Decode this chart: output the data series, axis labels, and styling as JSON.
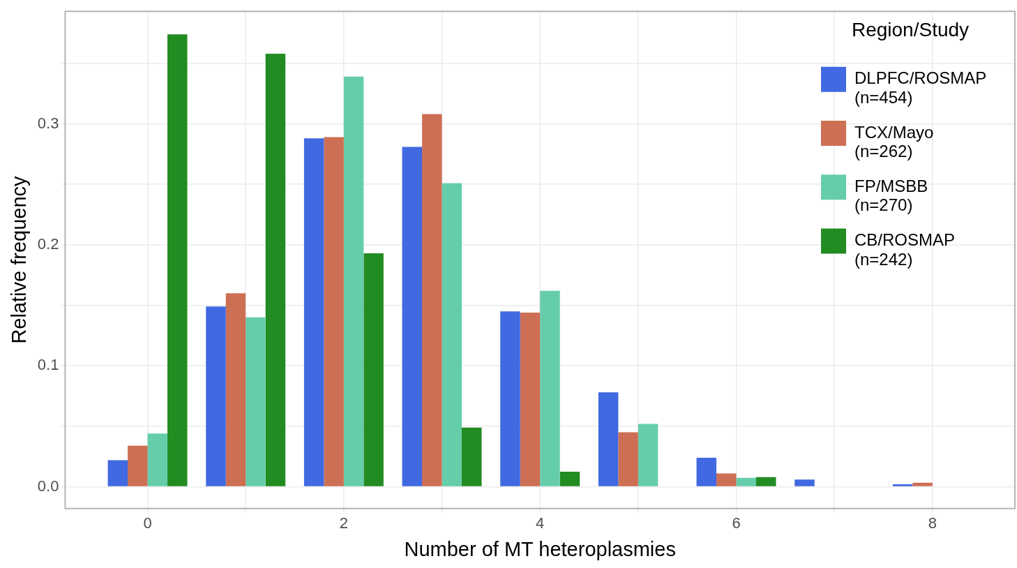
{
  "chart_data": {
    "type": "bar",
    "xlabel": "Number of MT heteroplasmies",
    "ylabel": "Relative frequency",
    "legend_title": "Region/Study",
    "x": [
      0,
      1,
      2,
      3,
      4,
      5,
      6,
      7,
      8
    ],
    "series": [
      {
        "name": "DLPFC/ROSMAP (n=454)",
        "color": "#4169e1",
        "values": [
          0.022,
          0.149,
          0.288,
          0.281,
          0.145,
          0.078,
          0.024,
          0.006,
          0.002
        ]
      },
      {
        "name": "TCX/Mayo (n=262)",
        "color": "#cd6f54",
        "values": [
          0.034,
          0.16,
          0.289,
          0.308,
          0.144,
          0.045,
          0.011,
          null,
          0.0034
        ]
      },
      {
        "name": "FP/MSBB (n=270)",
        "color": "#66cdaa",
        "values": [
          0.044,
          0.14,
          0.339,
          0.251,
          0.162,
          0.052,
          0.0074,
          null,
          null
        ]
      },
      {
        "name": "CB/ROSMAP (n=242)",
        "color": "#228b22",
        "values": [
          0.374,
          0.358,
          0.193,
          0.049,
          0.0125,
          null,
          0.008,
          null,
          null
        ]
      }
    ],
    "xlim": [
      -0.84,
      8.84
    ],
    "ylim": [
      -0.018,
      0.393
    ],
    "xticks": [
      0,
      {
        "value": 1,
        "label": null
      },
      2,
      {
        "value": 3,
        "label": null
      },
      4,
      {
        "value": 5,
        "label": null
      },
      6,
      {
        "value": 7,
        "label": null
      },
      8
    ],
    "yticks": [
      {
        "value": 0,
        "label": "0.0"
      },
      {
        "value": 0.05,
        "label": null
      },
      0.1,
      {
        "value": 0.15,
        "label": null
      },
      0.2,
      {
        "value": 0.25,
        "label": null
      },
      0.3,
      {
        "value": 0.35,
        "label": null
      }
    ],
    "grid": true,
    "legend": "top right"
  }
}
